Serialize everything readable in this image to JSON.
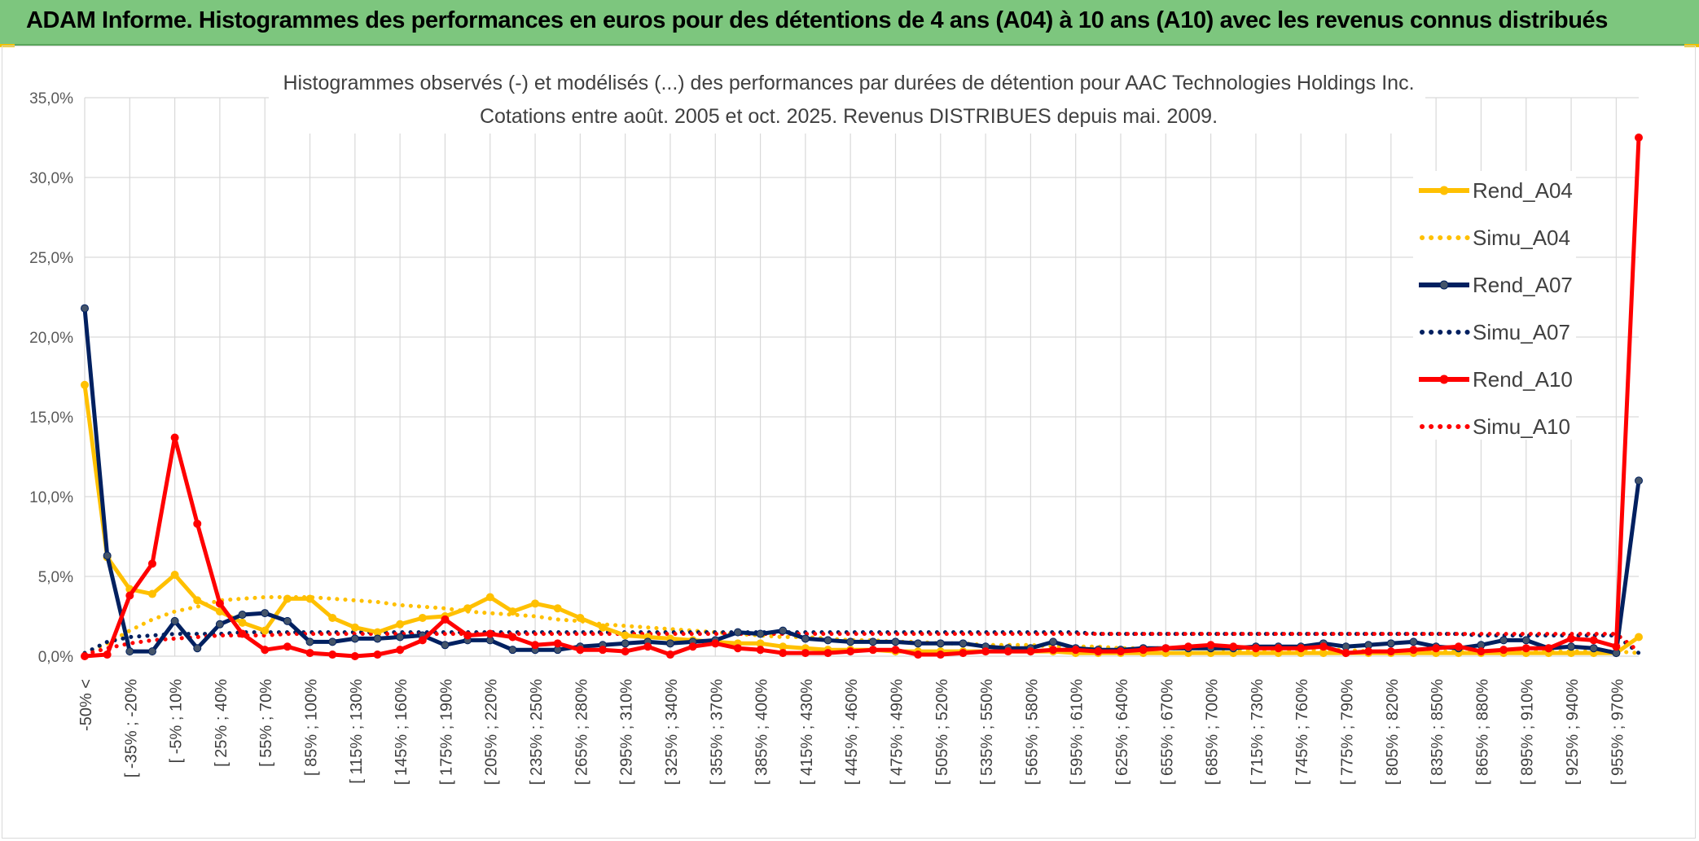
{
  "page": {
    "banner_title": "ADAM Informe. Histogrammes des performances en euros pour des détentions de 4 ans (A04) à 10 ans (A10) avec les revenus connus distribués"
  },
  "colors": {
    "banner": "#7dc67e",
    "A04": "#ffc000",
    "A07": "#002060",
    "A10": "#ff0000",
    "grid": "#d9d9d9"
  },
  "chart_data": {
    "type": "line",
    "title": "Histogrammes observés (-) et modélisés (...) des performances par durées de détention pour AAC Technologies Holdings Inc.",
    "subtitle": "Cotations entre août. 2005 et oct. 2025. Revenus DISTRIBUES depuis mai. 2009.",
    "xlabel": "",
    "ylabel": "",
    "ylim": [
      0,
      35
    ],
    "y_ticks": [
      "0,0%",
      "5,0%",
      "10,0%",
      "15,0%",
      "20,0%",
      "25,0%",
      "30,0%",
      "35,0%"
    ],
    "grid": "vertical and horizontal",
    "legend_position": "right",
    "x_labels": [
      "-50% <",
      "[ -35% ; -20%",
      "[ -5% ; 10%",
      "[ 25% ; 40%",
      "[ 55% ; 70%",
      "[ 85% ; 100%",
      "[ 115% ; 130%",
      "[ 145% ; 160%",
      "[ 175% ; 190%",
      "[ 205% ; 220%",
      "[ 235% ; 250%",
      "[ 265% ; 280%",
      "[ 295% ; 310%",
      "[ 325% ; 340%",
      "[ 355% ; 370%",
      "[ 385% ; 400%",
      "[ 415% ; 430%",
      "[ 445% ; 460%",
      "[ 475% ; 490%",
      "[ 505% ; 520%",
      "[ 535% ; 550%",
      "[ 565% ; 580%",
      "[ 595% ; 610%",
      "[ 625% ; 640%",
      "[ 655% ; 670%",
      "[ 685% ; 700%",
      "[ 715% ; 730%",
      "[ 745% ; 760%",
      "[ 775% ; 790%",
      "[ 805% ; 820%",
      "[ 835% ; 850%",
      "[ 865% ; 880%",
      "[ 895% ; 910%",
      "[ 925% ; 940%",
      "[ 955% ; 970%"
    ],
    "x_label_step": 2,
    "n_points": 70,
    "series": [
      {
        "name": "Rend_A04",
        "style": "solid",
        "color": "#ffc000",
        "markers": true,
        "values": [
          17.0,
          6.2,
          4.2,
          3.9,
          5.1,
          3.5,
          2.8,
          2.1,
          1.6,
          3.6,
          3.6,
          2.4,
          1.8,
          1.5,
          2.0,
          2.4,
          2.5,
          3.0,
          3.7,
          2.8,
          3.3,
          3.0,
          2.4,
          1.8,
          1.3,
          1.2,
          1.1,
          1.0,
          0.9,
          0.8,
          0.8,
          0.6,
          0.5,
          0.4,
          0.4,
          0.4,
          0.3,
          0.3,
          0.3,
          0.3,
          0.3,
          0.3,
          0.3,
          0.3,
          0.2,
          0.2,
          0.2,
          0.2,
          0.2,
          0.2,
          0.2,
          0.2,
          0.2,
          0.2,
          0.2,
          0.2,
          0.2,
          0.2,
          0.2,
          0.2,
          0.2,
          0.2,
          0.2,
          0.2,
          0.2,
          0.2,
          0.2,
          0.2,
          0.2,
          1.2
        ]
      },
      {
        "name": "Simu_A04",
        "style": "dotted",
        "color": "#ffc000",
        "markers": false,
        "values": [
          0.2,
          0.8,
          1.6,
          2.3,
          2.8,
          3.1,
          3.5,
          3.6,
          3.7,
          3.7,
          3.7,
          3.6,
          3.5,
          3.4,
          3.2,
          3.1,
          3.0,
          2.8,
          2.7,
          2.6,
          2.5,
          2.3,
          2.2,
          2.0,
          1.9,
          1.8,
          1.7,
          1.6,
          1.5,
          1.4,
          1.3,
          1.2,
          1.2,
          1.1,
          1.0,
          1.0,
          0.9,
          0.9,
          0.8,
          0.8,
          0.7,
          0.7,
          0.7,
          0.6,
          0.6,
          0.6,
          0.5,
          0.5,
          0.5,
          0.5,
          0.5,
          0.4,
          0.4,
          0.4,
          0.4,
          0.4,
          0.4,
          0.3,
          0.3,
          0.3,
          0.3,
          0.3,
          0.3,
          0.3,
          0.3,
          0.3,
          0.3,
          0.3,
          0.3,
          0.2
        ]
      },
      {
        "name": "Rend_A07",
        "style": "solid",
        "color": "#002060",
        "markers": true,
        "values": [
          21.8,
          6.3,
          0.3,
          0.3,
          2.2,
          0.5,
          2.0,
          2.6,
          2.7,
          2.2,
          0.9,
          0.9,
          1.1,
          1.1,
          1.2,
          1.3,
          0.7,
          1.0,
          1.0,
          0.4,
          0.4,
          0.4,
          0.6,
          0.7,
          0.8,
          0.9,
          0.8,
          0.9,
          1.0,
          1.5,
          1.4,
          1.6,
          1.1,
          1.0,
          0.9,
          0.9,
          0.9,
          0.8,
          0.8,
          0.8,
          0.6,
          0.5,
          0.5,
          0.9,
          0.5,
          0.4,
          0.4,
          0.5,
          0.5,
          0.5,
          0.5,
          0.5,
          0.6,
          0.6,
          0.6,
          0.8,
          0.6,
          0.7,
          0.8,
          0.9,
          0.6,
          0.5,
          0.7,
          1.0,
          1.0,
          0.5,
          0.6,
          0.5,
          0.2,
          11.0
        ]
      },
      {
        "name": "Simu_A07",
        "style": "dotted",
        "color": "#002060",
        "markers": false,
        "values": [
          0.2,
          0.9,
          1.2,
          1.3,
          1.4,
          1.4,
          1.4,
          1.5,
          1.5,
          1.5,
          1.5,
          1.5,
          1.5,
          1.5,
          1.5,
          1.5,
          1.5,
          1.5,
          1.5,
          1.5,
          1.5,
          1.5,
          1.5,
          1.5,
          1.5,
          1.5,
          1.5,
          1.5,
          1.5,
          1.5,
          1.5,
          1.5,
          1.5,
          1.5,
          1.5,
          1.5,
          1.5,
          1.5,
          1.5,
          1.5,
          1.5,
          1.5,
          1.5,
          1.5,
          1.5,
          1.4,
          1.4,
          1.4,
          1.4,
          1.4,
          1.4,
          1.4,
          1.4,
          1.4,
          1.4,
          1.4,
          1.4,
          1.4,
          1.4,
          1.4,
          1.4,
          1.4,
          1.3,
          1.3,
          1.3,
          1.3,
          1.3,
          1.3,
          1.3,
          0.2
        ]
      },
      {
        "name": "Rend_A10",
        "style": "solid",
        "color": "#ff0000",
        "markers": true,
        "values": [
          0.0,
          0.1,
          3.8,
          5.8,
          13.7,
          8.3,
          3.3,
          1.4,
          0.4,
          0.6,
          0.2,
          0.1,
          0.0,
          0.1,
          0.4,
          1.0,
          2.3,
          1.3,
          1.4,
          1.2,
          0.7,
          0.8,
          0.4,
          0.4,
          0.3,
          0.6,
          0.1,
          0.6,
          0.8,
          0.5,
          0.4,
          0.2,
          0.2,
          0.2,
          0.3,
          0.4,
          0.4,
          0.1,
          0.1,
          0.2,
          0.3,
          0.3,
          0.3,
          0.4,
          0.4,
          0.3,
          0.3,
          0.4,
          0.5,
          0.6,
          0.7,
          0.6,
          0.5,
          0.5,
          0.5,
          0.6,
          0.2,
          0.3,
          0.3,
          0.4,
          0.5,
          0.6,
          0.3,
          0.4,
          0.5,
          0.5,
          1.1,
          1.0,
          0.6,
          32.5
        ]
      },
      {
        "name": "Simu_A10",
        "style": "dotted",
        "color": "#ff0000",
        "markers": false,
        "values": [
          0.1,
          0.5,
          0.8,
          1.0,
          1.1,
          1.2,
          1.3,
          1.3,
          1.3,
          1.4,
          1.4,
          1.4,
          1.4,
          1.4,
          1.4,
          1.4,
          1.4,
          1.4,
          1.4,
          1.4,
          1.4,
          1.4,
          1.4,
          1.4,
          1.4,
          1.4,
          1.4,
          1.4,
          1.4,
          1.4,
          1.4,
          1.4,
          1.4,
          1.4,
          1.4,
          1.4,
          1.4,
          1.4,
          1.4,
          1.4,
          1.4,
          1.4,
          1.4,
          1.4,
          1.4,
          1.4,
          1.4,
          1.4,
          1.4,
          1.4,
          1.4,
          1.4,
          1.4,
          1.4,
          1.4,
          1.4,
          1.4,
          1.4,
          1.4,
          1.4,
          1.4,
          1.4,
          1.4,
          1.4,
          1.4,
          1.4,
          1.4,
          1.4,
          1.4,
          0.3
        ]
      }
    ]
  }
}
